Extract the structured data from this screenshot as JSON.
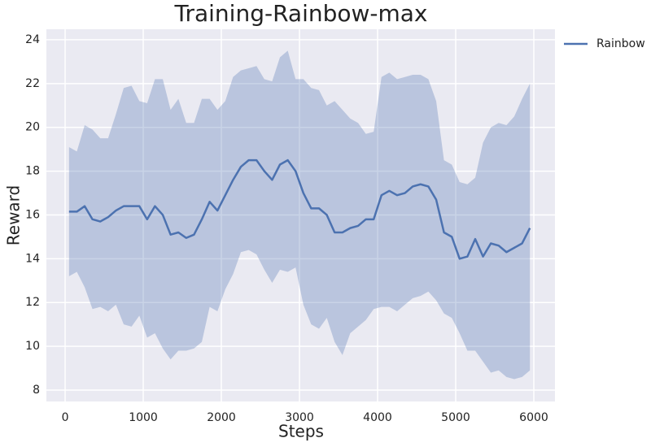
{
  "chart_data": {
    "type": "line",
    "title": "Training-Rainbow-max",
    "xlabel": "Steps",
    "ylabel": "Reward",
    "x": [
      50,
      150,
      250,
      350,
      450,
      550,
      650,
      750,
      850,
      950,
      1050,
      1150,
      1250,
      1350,
      1450,
      1550,
      1650,
      1750,
      1850,
      1950,
      2050,
      2150,
      2250,
      2350,
      2450,
      2550,
      2650,
      2750,
      2850,
      2950,
      3050,
      3150,
      3250,
      3350,
      3450,
      3550,
      3650,
      3750,
      3850,
      3950,
      4050,
      4150,
      4250,
      4350,
      4450,
      4550,
      4650,
      4750,
      4850,
      4950,
      5050,
      5150,
      5250,
      5350,
      5450,
      5550,
      5650,
      5750,
      5850,
      5950
    ],
    "series": [
      {
        "name": "Rainbow",
        "color": "#4c72b0",
        "values": [
          16.15,
          16.15,
          16.4,
          15.8,
          15.7,
          15.9,
          16.2,
          16.4,
          16.4,
          16.4,
          15.8,
          16.4,
          16.0,
          15.1,
          15.2,
          14.95,
          15.1,
          15.8,
          16.6,
          16.2,
          16.9,
          17.6,
          18.2,
          18.5,
          18.5,
          18.0,
          17.6,
          18.3,
          18.5,
          18.0,
          17.0,
          16.3,
          16.3,
          16.0,
          15.2,
          15.2,
          15.4,
          15.5,
          15.8,
          15.8,
          16.9,
          17.1,
          16.9,
          17.0,
          17.3,
          17.4,
          17.3,
          16.7,
          15.2,
          15.0,
          14.0,
          14.1,
          14.9,
          14.1,
          14.7,
          14.6,
          14.3,
          14.5,
          14.7,
          15.4
        ],
        "upper": [
          19.1,
          18.9,
          20.1,
          19.9,
          19.5,
          19.5,
          20.6,
          21.8,
          21.9,
          21.2,
          21.1,
          22.2,
          22.2,
          20.8,
          21.3,
          20.2,
          20.2,
          21.3,
          21.3,
          20.8,
          21.2,
          22.3,
          22.6,
          22.7,
          22.8,
          22.2,
          22.1,
          23.2,
          23.5,
          22.2,
          22.2,
          21.8,
          21.7,
          21.0,
          21.2,
          20.8,
          20.4,
          20.2,
          19.7,
          19.8,
          22.3,
          22.5,
          22.2,
          22.3,
          22.4,
          22.4,
          22.2,
          21.2,
          18.5,
          18.3,
          17.5,
          17.4,
          17.7,
          19.3,
          20.0,
          20.2,
          20.1,
          20.5,
          21.3,
          22.0
        ],
        "lower": [
          13.2,
          13.4,
          12.7,
          11.7,
          11.8,
          11.6,
          11.9,
          11.0,
          10.9,
          11.4,
          10.4,
          10.6,
          9.9,
          9.4,
          9.8,
          9.8,
          9.9,
          10.2,
          11.8,
          11.6,
          12.6,
          13.3,
          14.3,
          14.4,
          14.2,
          13.5,
          12.9,
          13.5,
          13.4,
          13.6,
          11.9,
          11.0,
          10.8,
          11.3,
          10.2,
          9.6,
          10.6,
          10.9,
          11.2,
          11.7,
          11.8,
          11.8,
          11.6,
          11.9,
          12.2,
          12.3,
          12.5,
          12.1,
          11.5,
          11.3,
          10.6,
          9.8,
          9.8,
          9.3,
          8.8,
          8.9,
          8.6,
          8.5,
          8.6,
          8.9
        ]
      }
    ],
    "xlim": [
      -240,
      6271
    ],
    "ylim": [
      7.48,
      24.48
    ],
    "xticks": [
      0,
      1000,
      2000,
      3000,
      4000,
      5000,
      6000
    ],
    "yticks": [
      8,
      10,
      12,
      14,
      16,
      18,
      20,
      22,
      24
    ],
    "grid": true,
    "legend": "outside upper right"
  }
}
